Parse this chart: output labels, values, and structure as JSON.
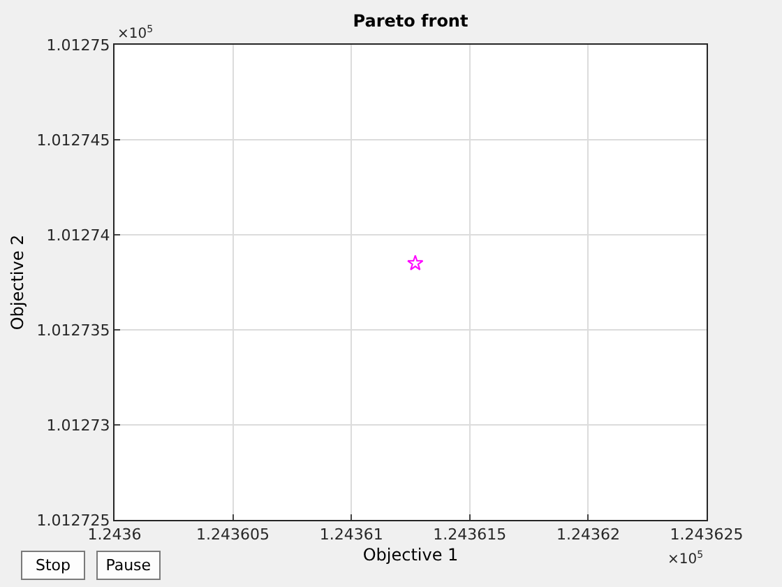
{
  "chart_data": {
    "type": "scatter",
    "title": "Pareto front",
    "xlabel": "Objective 1",
    "ylabel": "Objective 2",
    "x": [
      1.2436127
    ],
    "series": [
      {
        "color": "#ff00ff",
        "values": [
          1.0127385
        ]
      }
    ],
    "xlim": [
      1.2436,
      1.243625
    ],
    "xticks": [
      1.2436,
      1.243605,
      1.24361,
      1.243615,
      1.24362,
      1.243625
    ],
    "ylim": [
      1.012725,
      1.01275
    ],
    "yticks": [
      1.012725,
      1.01273,
      1.012735,
      1.01274,
      1.012745,
      1.01275
    ],
    "grid": true,
    "marker": "star",
    "annotations": [
      "×10$^{5}$",
      "×10$^{5}$",
      "Stop",
      "Pause"
    ]
  }
}
